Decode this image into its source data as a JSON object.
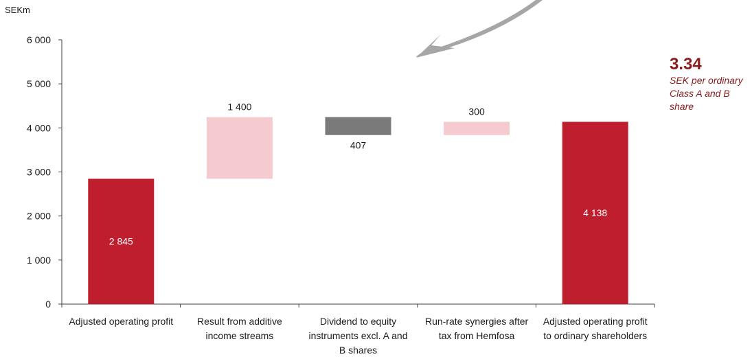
{
  "chart_data": {
    "type": "bar",
    "subtype": "waterfall",
    "unit_label": "SEKm",
    "ylim": [
      0,
      6000
    ],
    "yticks": [
      0,
      1000,
      2000,
      3000,
      4000,
      5000,
      6000
    ],
    "ytick_labels": [
      "0",
      "1 000",
      "2 000",
      "3 000",
      "4 000",
      "5 000",
      "6 000"
    ],
    "categories": [
      "Adjusted operating profit",
      "Result from additive income streams",
      "Dividend to equity instruments excl. A and B shares",
      "Run-rate synergies after tax from Hemfosa",
      "Adjusted operating profit to ordinary shareholders"
    ],
    "bars": [
      {
        "kind": "total",
        "base": 0,
        "top": 2845,
        "label": "2 845",
        "label_pos": "inside",
        "color": "#be1e2d"
      },
      {
        "kind": "increase",
        "base": 2845,
        "top": 4245,
        "label": "1 400",
        "label_pos": "above",
        "color": "#f6cbd0"
      },
      {
        "kind": "decrease",
        "base": 3838,
        "top": 4245,
        "label": "407",
        "label_pos": "below",
        "color": "#7a7a7a"
      },
      {
        "kind": "increase",
        "base": 3838,
        "top": 4138,
        "label": "300",
        "label_pos": "above",
        "color": "#f6cbd0"
      },
      {
        "kind": "total",
        "base": 0,
        "top": 4138,
        "label": "4 138",
        "label_pos": "inside",
        "color": "#be1e2d"
      }
    ],
    "grid": false,
    "legend": "none"
  },
  "callout": {
    "value": "3.34",
    "text": "SEK per ordinary Class A and B share",
    "color": "#8b1a1a"
  }
}
